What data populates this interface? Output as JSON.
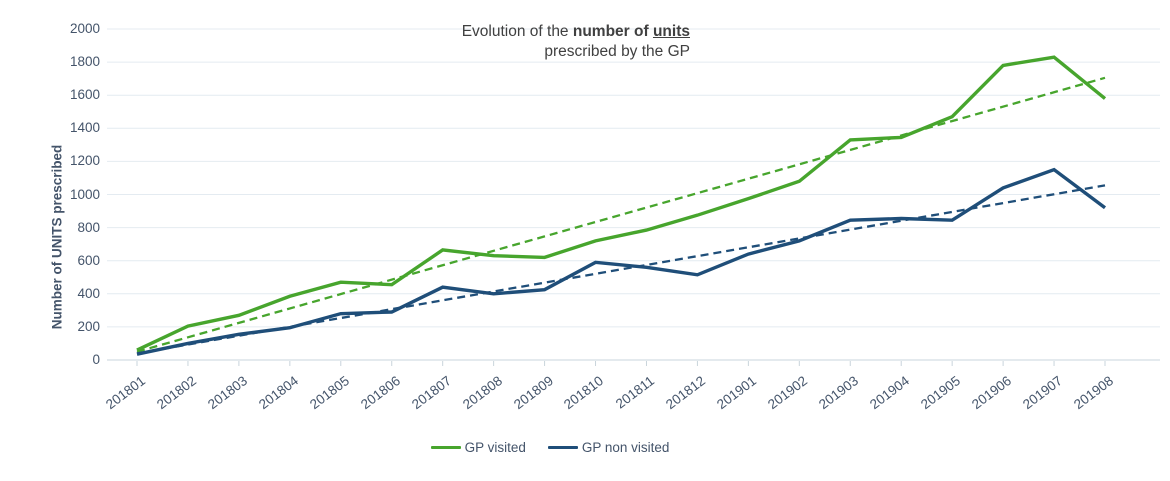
{
  "title": {
    "line1_prefix": "Evolution of the ",
    "line1_bold": "number of ",
    "line1_bold_underlined": "units",
    "line2": "prescribed by the GP"
  },
  "y_axis": {
    "label": "Number of UNITS prescribed",
    "tick_values": [
      0,
      200,
      400,
      600,
      800,
      1000,
      1200,
      1400,
      1600,
      1800,
      2000
    ]
  },
  "legend": {
    "items": [
      {
        "label": "GP visited",
        "color": "#47a52d"
      },
      {
        "label": "GP non visited",
        "color": "#1f4e79"
      }
    ]
  },
  "colors": {
    "gp_visited": "#47a52d",
    "gp_non_visited": "#1f4e79",
    "gridline": "#e4ebf1",
    "axis_line": "#c9d4dc",
    "axis_text": "#44546a",
    "title_text": "#404040"
  },
  "chart_data": {
    "type": "line",
    "title": "Evolution of the number of units prescribed by the GP",
    "xlabel": "",
    "ylabel": "Number of UNITS prescribed",
    "ylim": [
      0,
      2000
    ],
    "y_tick_step": 200,
    "grid": true,
    "legend_position": "bottom",
    "categories": [
      "201801",
      "201802",
      "201803",
      "201804",
      "201805",
      "201806",
      "201807",
      "201808",
      "201809",
      "201810",
      "201811",
      "201812",
      "201901",
      "201902",
      "201903",
      "201904",
      "201905",
      "201906",
      "201907",
      "201908"
    ],
    "series": [
      {
        "name": "GP visited",
        "line_style": "solid",
        "color": "#47a52d",
        "values": [
          60,
          205,
          270,
          385,
          470,
          455,
          665,
          630,
          620,
          720,
          785,
          875,
          975,
          1080,
          1330,
          1345,
          1470,
          1780,
          1830,
          1580
        ]
      },
      {
        "name": "GP non visited",
        "line_style": "solid",
        "color": "#1f4e79",
        "values": [
          35,
          100,
          155,
          195,
          280,
          290,
          440,
          400,
          425,
          590,
          560,
          515,
          640,
          720,
          845,
          855,
          845,
          1040,
          1150,
          920
        ]
      },
      {
        "name": "GP visited linear trend",
        "line_style": "dashed",
        "color": "#47a52d",
        "trend_start": 50,
        "trend_end": 1705
      },
      {
        "name": "GP non visited linear trend",
        "line_style": "dashed",
        "color": "#1f4e79",
        "trend_start": 40,
        "trend_end": 1055
      }
    ]
  }
}
